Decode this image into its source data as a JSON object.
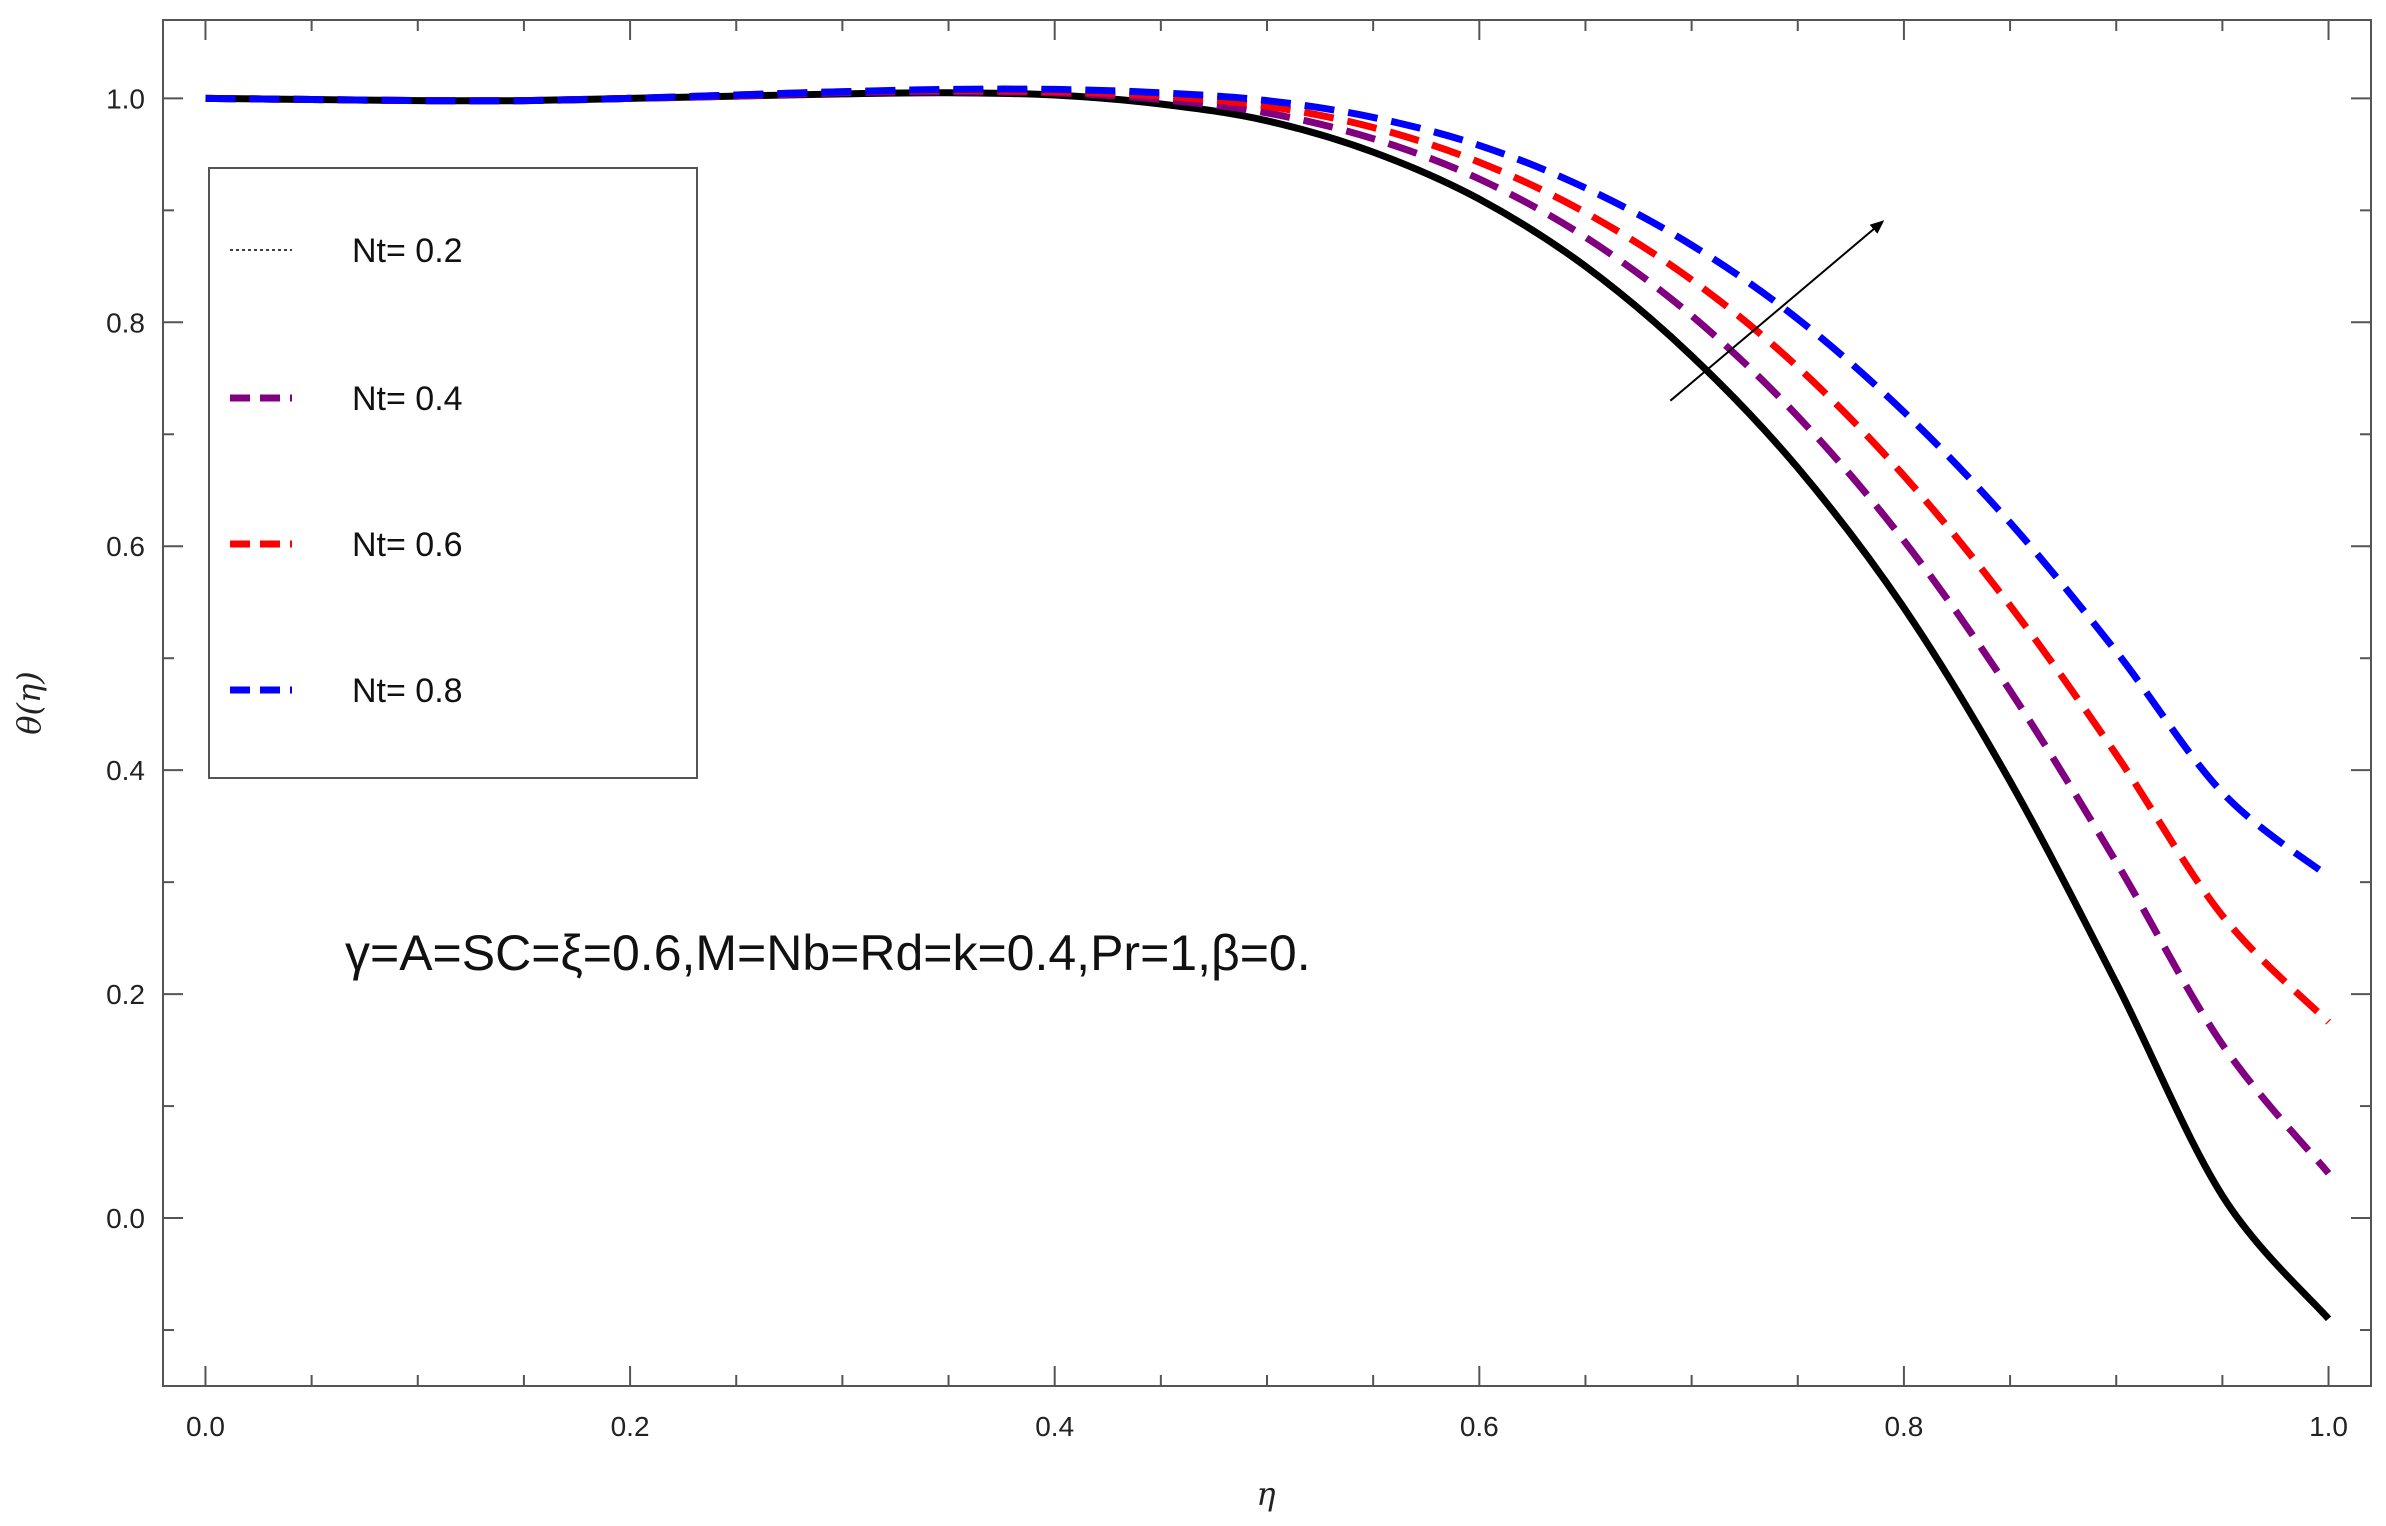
{
  "chart_data": {
    "type": "line",
    "xlabel": "η",
    "ylabel": "θ(η)",
    "xlim": [
      -0.02,
      1.02
    ],
    "ylim": [
      -0.15,
      1.07
    ],
    "x_ticks": [
      0.0,
      0.2,
      0.4,
      0.6,
      0.8,
      1.0
    ],
    "x_tick_labels": [
      "0.0",
      "0.2",
      "0.4",
      "0.6",
      "0.8",
      "1.0"
    ],
    "y_ticks": [
      0.0,
      0.2,
      0.4,
      0.6,
      0.8,
      1.0
    ],
    "y_tick_labels": [
      "0.0",
      "0.2",
      "0.4",
      "0.6",
      "0.8",
      "1.0"
    ],
    "grid": false,
    "legend_position": "upper-left",
    "annotation": "γ=A=SC=ξ=0.6,M=Nb=Rd=k=0.4,Pr=1,β=0.",
    "arrow": {
      "from": [
        0.69,
        0.73
      ],
      "to": [
        0.79,
        0.89
      ],
      "meaning": "increasing Nt"
    },
    "x": [
      0.0,
      0.05,
      0.1,
      0.15,
      0.2,
      0.25,
      0.3,
      0.35,
      0.4,
      0.45,
      0.5,
      0.55,
      0.6,
      0.65,
      0.7,
      0.75,
      0.8,
      0.85,
      0.9,
      0.95,
      1.0
    ],
    "series": [
      {
        "name": "Nt= 0.2",
        "color": "#000000",
        "line_style": "solid",
        "values": [
          1.0,
          0.999,
          0.998,
          0.998,
          1.0,
          1.002,
          1.004,
          1.005,
          1.003,
          0.995,
          0.98,
          0.952,
          0.91,
          0.85,
          0.77,
          0.67,
          0.545,
          0.39,
          0.21,
          0.02,
          -0.09
        ]
      },
      {
        "name": "Nt= 0.4",
        "color": "#800080",
        "line_style": "dashed",
        "values": [
          1.0,
          0.999,
          0.998,
          0.998,
          1.0,
          1.002,
          1.005,
          1.006,
          1.005,
          0.999,
          0.987,
          0.964,
          0.928,
          0.876,
          0.806,
          0.716,
          0.605,
          0.471,
          0.318,
          0.155,
          0.04
        ]
      },
      {
        "name": "Nt= 0.6",
        "color": "#ff0000",
        "line_style": "dashed",
        "values": [
          1.0,
          0.999,
          0.998,
          0.998,
          1.0,
          1.003,
          1.006,
          1.007,
          1.006,
          1.002,
          0.993,
          0.974,
          0.943,
          0.898,
          0.838,
          0.76,
          0.663,
          0.547,
          0.414,
          0.27,
          0.175
        ]
      },
      {
        "name": "Nt= 0.8",
        "color": "#0000ff",
        "line_style": "dashed",
        "values": [
          1.0,
          0.999,
          0.998,
          0.998,
          1.0,
          1.003,
          1.006,
          1.008,
          1.008,
          1.005,
          0.998,
          0.983,
          0.958,
          0.92,
          0.869,
          0.803,
          0.72,
          0.621,
          0.506,
          0.38,
          0.305
        ]
      }
    ]
  }
}
